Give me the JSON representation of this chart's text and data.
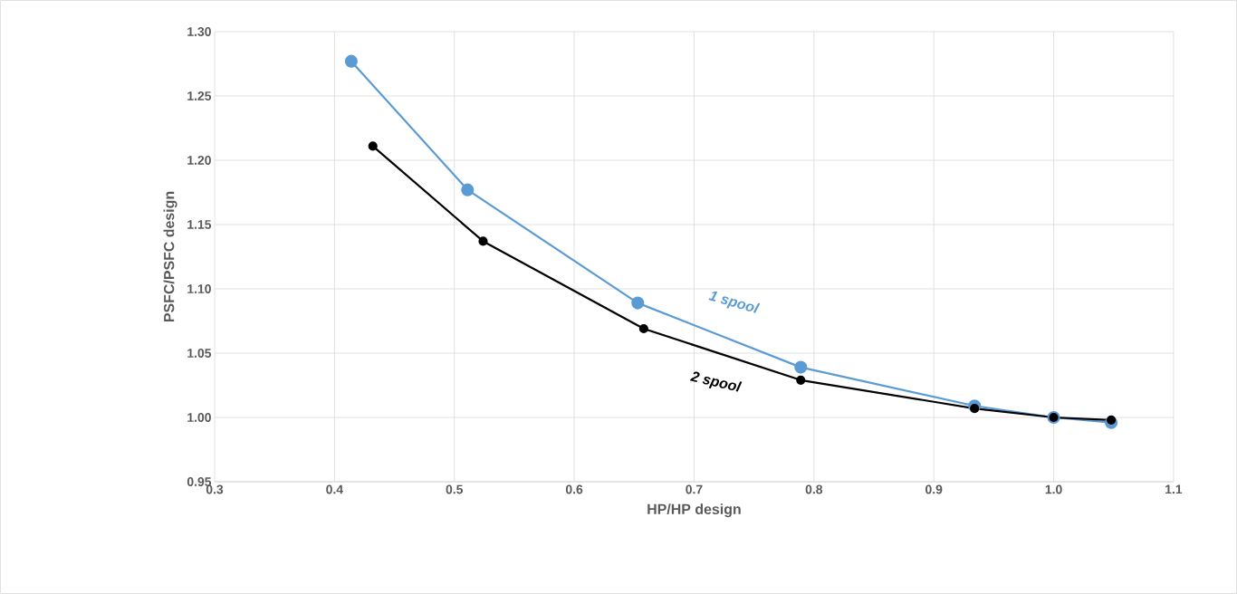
{
  "chart_data": {
    "type": "line",
    "xlabel": "HP/HP design",
    "ylabel": "PSFC/PSFC design",
    "xlim": [
      0.3,
      1.1
    ],
    "xticks": [
      0.3,
      0.4,
      0.5,
      0.6,
      0.7,
      0.8,
      0.9,
      {
        "value": 1.0,
        "label": "1.0"
      },
      1.1
    ],
    "ylim": [
      0.95,
      1.3
    ],
    "yticks": [
      0.95,
      {
        "value": 1.0,
        "label": "1.00"
      },
      1.05,
      {
        "value": 1.1,
        "label": "1.10"
      },
      1.15,
      {
        "value": 1.2,
        "label": "1.20"
      },
      1.25,
      {
        "value": 1.3,
        "label": "1.30"
      }
    ],
    "grid": true,
    "legend": false,
    "marker": "circle",
    "line_style": "solid",
    "series": [
      {
        "name": "1 spool",
        "color": "#5b9bd5",
        "x": [
          0.414,
          0.511,
          0.653,
          0.789,
          0.934,
          1.0,
          1.048
        ],
        "values": [
          1.277,
          1.177,
          1.089,
          1.039,
          1.009,
          1.0,
          0.996
        ]
      },
      {
        "name": "2 spool",
        "color": "#000000",
        "x": [
          0.432,
          0.524,
          0.658,
          0.789,
          0.934,
          1.0,
          1.048
        ],
        "values": [
          1.211,
          1.137,
          1.069,
          1.029,
          1.007,
          1.0,
          0.998
        ]
      }
    ]
  }
}
